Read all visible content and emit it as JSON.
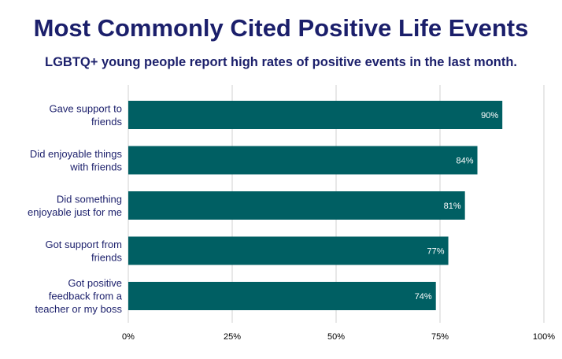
{
  "chart_data": {
    "type": "bar",
    "orientation": "horizontal",
    "title": "Most Commonly Cited Positive Life Events",
    "subtitle": "LGBTQ+ young people report high rates of positive events in the last month.",
    "categories": [
      [
        "Gave support to",
        "friends"
      ],
      [
        "Did enjoyable things",
        "with friends"
      ],
      [
        "Did something",
        "enjoyable just for me"
      ],
      [
        "Got support from",
        "friends"
      ],
      [
        "Got positive",
        "feedback from a",
        "teacher or my boss"
      ]
    ],
    "values": [
      90,
      84,
      81,
      77,
      74
    ],
    "data_labels": [
      "90%",
      "84%",
      "81%",
      "77%",
      "74%"
    ],
    "xlim": [
      0,
      100
    ],
    "ticks": [
      0,
      25,
      50,
      75,
      100
    ],
    "tick_labels": [
      "0%",
      "25%",
      "50%",
      "75%",
      "100%"
    ],
    "grid": true,
    "bar_color": "#005f63",
    "title_color": "#1b1f6b",
    "grid_color": "#d0d0d0"
  }
}
